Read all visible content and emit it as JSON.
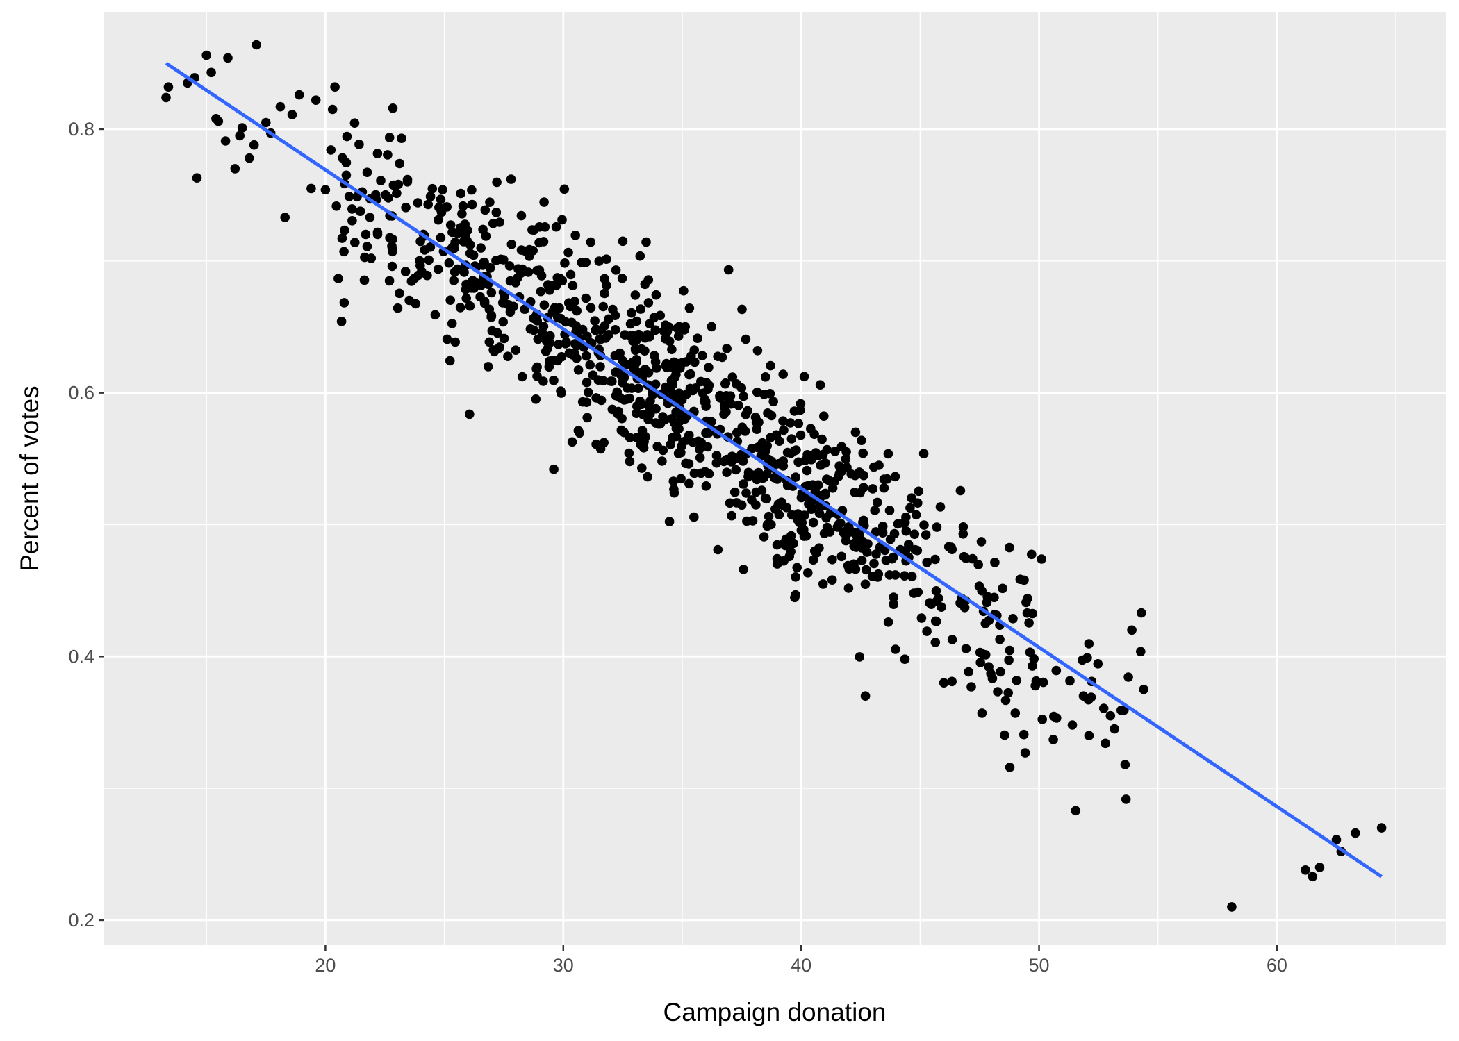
{
  "chart_data": {
    "type": "scatter",
    "title": "",
    "xlabel": "Campaign donation",
    "ylabel": "Percent of votes",
    "xlim": [
      10.7,
      67.1
    ],
    "ylim": [
      0.181,
      0.889
    ],
    "x_ticks": [
      20,
      30,
      40,
      50,
      60
    ],
    "y_ticks": [
      0.2,
      0.4,
      0.6,
      0.8
    ],
    "x_tick_labels": [
      "20",
      "30",
      "40",
      "50",
      "60"
    ],
    "y_tick_labels": [
      "0.2",
      "0.4",
      "0.6",
      "0.8"
    ],
    "grid": true,
    "legend": "none",
    "colors": {
      "panel_background": "#ebebeb",
      "grid": "#ffffff",
      "points": "#000000",
      "fit_line": "#3366ff"
    },
    "trend_line": {
      "type": "linear",
      "x": [
        13.3,
        64.4
      ],
      "y": [
        0.85,
        0.233
      ]
    },
    "seed_points": [
      [
        13.3,
        0.824
      ],
      [
        13.4,
        0.832
      ],
      [
        14.2,
        0.835
      ],
      [
        14.5,
        0.839
      ],
      [
        14.6,
        0.763
      ],
      [
        15.0,
        0.856
      ],
      [
        15.2,
        0.843
      ],
      [
        15.9,
        0.854
      ],
      [
        15.4,
        0.808
      ],
      [
        15.8,
        0.791
      ],
      [
        16.2,
        0.77
      ],
      [
        16.5,
        0.801
      ],
      [
        16.8,
        0.778
      ],
      [
        17.1,
        0.864
      ],
      [
        17.0,
        0.788
      ],
      [
        17.5,
        0.805
      ],
      [
        17.7,
        0.797
      ],
      [
        18.1,
        0.817
      ],
      [
        18.3,
        0.733
      ],
      [
        18.6,
        0.811
      ],
      [
        18.9,
        0.826
      ],
      [
        19.4,
        0.755
      ],
      [
        19.6,
        0.822
      ],
      [
        20.0,
        0.754
      ],
      [
        20.3,
        0.815
      ],
      [
        20.4,
        0.832
      ],
      [
        15.5,
        0.806
      ],
      [
        16.4,
        0.795
      ]
    ],
    "tail_points": [
      [
        52.1,
        0.34
      ],
      [
        53.0,
        0.355
      ],
      [
        58.1,
        0.21
      ],
      [
        61.2,
        0.238
      ],
      [
        61.5,
        0.233
      ],
      [
        61.8,
        0.24
      ],
      [
        62.5,
        0.261
      ],
      [
        62.7,
        0.252
      ],
      [
        63.3,
        0.266
      ],
      [
        64.4,
        0.27
      ],
      [
        54.3,
        0.433
      ],
      [
        53.9,
        0.42
      ],
      [
        50.6,
        0.337
      ],
      [
        49.0,
        0.357
      ],
      [
        47.6,
        0.357
      ],
      [
        51.4,
        0.348
      ],
      [
        54.4,
        0.375
      ],
      [
        42.7,
        0.37
      ],
      [
        46.0,
        0.38
      ],
      [
        38.5,
        0.612
      ],
      [
        40.8,
        0.606
      ],
      [
        32.5,
        0.715
      ],
      [
        23.2,
        0.793
      ],
      [
        29.6,
        0.542
      ],
      [
        36.5,
        0.481
      ]
    ],
    "bulk_points": {
      "count": 1000,
      "x_mean": 34.7,
      "x_sd": 9.3,
      "x_range": [
        20.2,
        54.5
      ],
      "intercept": 1.011,
      "slope": -0.01207,
      "residual_sd": 0.036
    }
  }
}
